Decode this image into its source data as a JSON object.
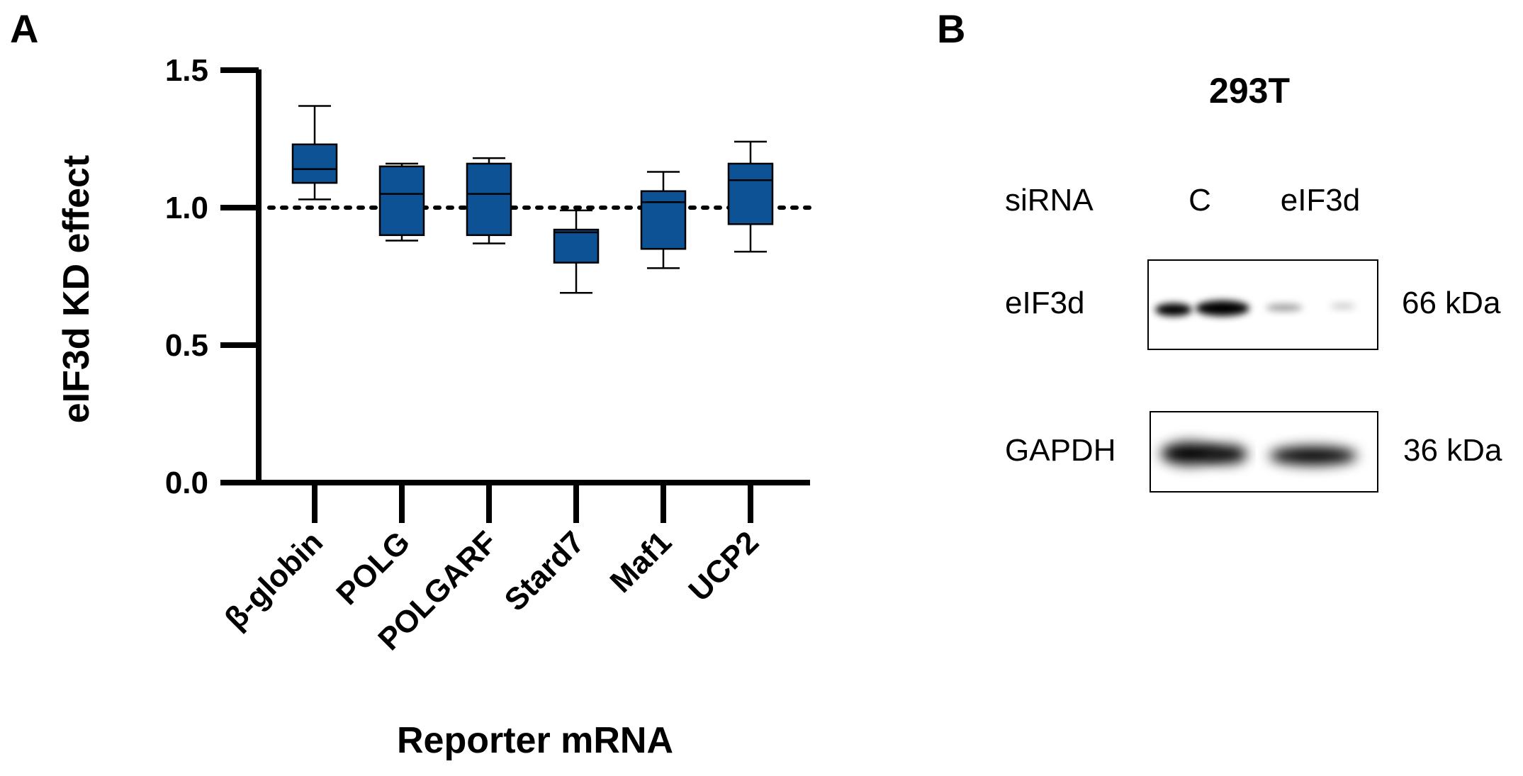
{
  "panel_a": {
    "letter": "A"
  },
  "panel_b": {
    "letter": "B",
    "title": "293T",
    "sirna_label": "siRNA",
    "lanes": [
      "C",
      "eIF3d"
    ],
    "bands": [
      {
        "name": "eIF3d",
        "size": "66 kDa"
      },
      {
        "name": "GAPDH",
        "size": "36 kDa"
      }
    ]
  },
  "colors": {
    "box_fill": "#0e5296",
    "box_stroke": "#000000",
    "axis": "#000000"
  },
  "chart_data": {
    "type": "boxplot",
    "title": "",
    "xlabel": "Reporter mRNA",
    "ylabel": "eIF3d KD effect",
    "ylim": [
      0,
      1.5
    ],
    "yticks": [
      0.0,
      0.5,
      1.0,
      1.5
    ],
    "ytick_labels": [
      "0.0",
      "0.5",
      "1.0",
      "1.5"
    ],
    "reference_line": 1.0,
    "categories": [
      "β-globin",
      "POLG",
      "POLGARF",
      "Stard7",
      "Maf1",
      "UCP2"
    ],
    "series": [
      {
        "name": "β-globin",
        "min": 1.03,
        "q1": 1.09,
        "median": 1.14,
        "q3": 1.23,
        "max": 1.37
      },
      {
        "name": "POLG",
        "min": 0.88,
        "q1": 0.9,
        "median": 1.05,
        "q3": 1.15,
        "max": 1.16
      },
      {
        "name": "POLGARF",
        "min": 0.87,
        "q1": 0.9,
        "median": 1.05,
        "q3": 1.16,
        "max": 1.18
      },
      {
        "name": "Stard7",
        "min": 0.69,
        "q1": 0.8,
        "median": 0.91,
        "q3": 0.92,
        "max": 0.99
      },
      {
        "name": "Maf1",
        "min": 0.78,
        "q1": 0.85,
        "median": 1.02,
        "q3": 1.06,
        "max": 1.13
      },
      {
        "name": "UCP2",
        "min": 0.84,
        "q1": 0.94,
        "median": 1.1,
        "q3": 1.16,
        "max": 1.24
      }
    ]
  }
}
